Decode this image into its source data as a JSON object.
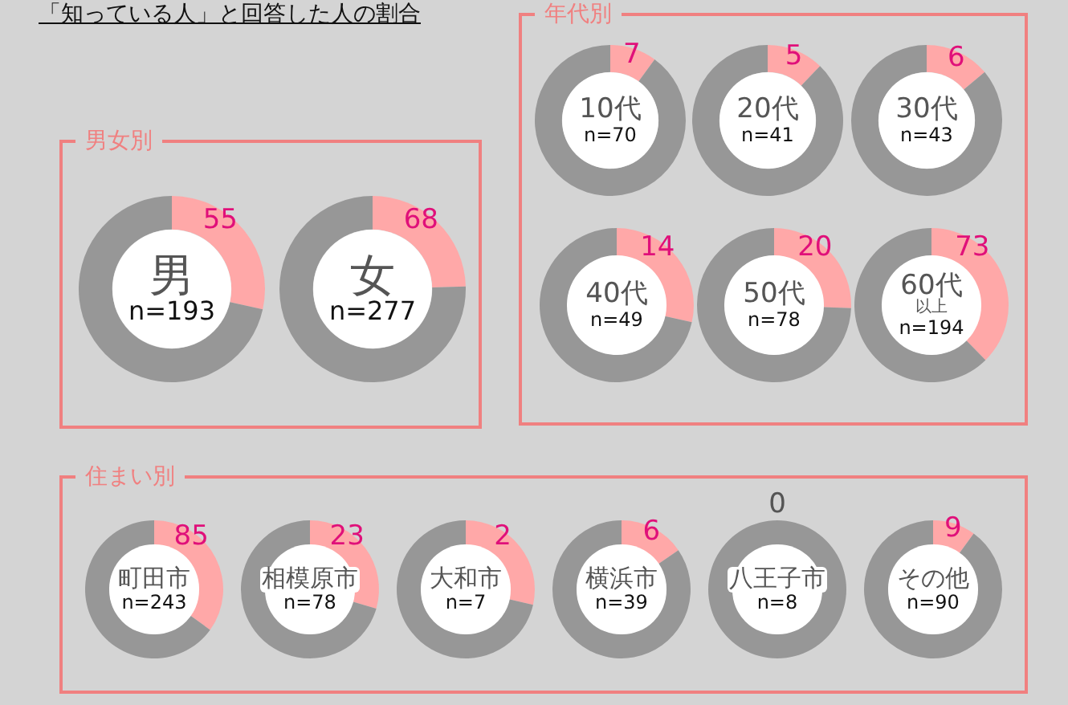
{
  "chart_data": [
    {
      "type": "other",
      "title": "「知っている人」と回答した人の割合"
    },
    {
      "type": "other",
      "title": "男女別"
    },
    {
      "type": "donut",
      "title": "男",
      "subtitle": "n=193",
      "categories": [
        null,
        null
      ],
      "values": [
        55,
        138
      ],
      "value_labels": [
        "55",
        null
      ],
      "colors": [
        "#ffa8a8",
        "#979797"
      ]
    },
    {
      "type": "donut",
      "title": "女",
      "subtitle": "n=277",
      "categories": [
        null,
        null
      ],
      "values": [
        68,
        209
      ],
      "value_labels": [
        "68",
        null
      ],
      "colors": [
        "#ffa8a8",
        "#979797"
      ]
    },
    {
      "type": "other",
      "title": "年代別"
    },
    {
      "type": "donut",
      "title": "10代",
      "subtitle": "n=70",
      "categories": [
        null,
        null
      ],
      "values": [
        7,
        63
      ],
      "value_labels": [
        "7",
        null
      ],
      "colors": [
        "#ffa8a8",
        "#979797"
      ]
    },
    {
      "type": "donut",
      "title": "20代",
      "subtitle": "n=41",
      "categories": [
        null,
        null
      ],
      "values": [
        5,
        36
      ],
      "value_labels": [
        "5",
        null
      ],
      "colors": [
        "#ffa8a8",
        "#979797"
      ]
    },
    {
      "type": "donut",
      "title": "30代",
      "subtitle": "n=43",
      "categories": [
        null,
        null
      ],
      "values": [
        6,
        37
      ],
      "value_labels": [
        "6",
        null
      ],
      "colors": [
        "#ffa8a8",
        "#979797"
      ]
    },
    {
      "type": "donut",
      "title": "40代",
      "subtitle": "n=49",
      "categories": [
        null,
        null
      ],
      "values": [
        14,
        35
      ],
      "value_labels": [
        "14",
        null
      ],
      "colors": [
        "#ffa8a8",
        "#979797"
      ]
    },
    {
      "type": "donut",
      "title": "50代",
      "subtitle": "n=78",
      "categories": [
        null,
        null
      ],
      "values": [
        20,
        58
      ],
      "value_labels": [
        "20",
        null
      ],
      "colors": [
        "#ffa8a8",
        "#979797"
      ]
    },
    {
      "type": "donut",
      "title": "60代",
      "subtitle": "n=194",
      "annotations": [
        "以上"
      ],
      "categories": [
        null,
        null
      ],
      "values": [
        73,
        121
      ],
      "value_labels": [
        "73",
        null
      ],
      "colors": [
        "#ffa8a8",
        "#979797"
      ]
    },
    {
      "type": "other",
      "title": "住まい別"
    },
    {
      "type": "donut",
      "title": "町田市",
      "subtitle": "n=243",
      "categories": [
        null,
        null
      ],
      "values": [
        85,
        158
      ],
      "value_labels": [
        "85",
        null
      ],
      "colors": [
        "#ffa8a8",
        "#979797"
      ]
    },
    {
      "type": "donut",
      "title": "相模原市",
      "subtitle": "n=78",
      "categories": [
        null,
        null
      ],
      "values": [
        23,
        55
      ],
      "value_labels": [
        "23",
        null
      ],
      "colors": [
        "#ffa8a8",
        "#979797"
      ]
    },
    {
      "type": "donut",
      "title": "大和市",
      "subtitle": "n=7",
      "categories": [
        null,
        null
      ],
      "values": [
        2,
        5
      ],
      "value_labels": [
        "2",
        null
      ],
      "colors": [
        "#ffa8a8",
        "#979797"
      ]
    },
    {
      "type": "donut",
      "title": "横浜市",
      "subtitle": "n=39",
      "categories": [
        null,
        null
      ],
      "values": [
        6,
        33
      ],
      "value_labels": [
        "6",
        null
      ],
      "colors": [
        "#ffa8a8",
        "#979797"
      ]
    },
    {
      "type": "donut",
      "title": "八王子市",
      "subtitle": "n=8",
      "categories": [
        null,
        null
      ],
      "values": [
        0,
        100
      ],
      "value_labels": [
        "0",
        null
      ],
      "colors": [
        "#ffa8a8",
        "#979797"
      ]
    },
    {
      "type": "donut",
      "title": "その他",
      "subtitle": "n=90",
      "categories": [
        null,
        null
      ],
      "values": [
        9,
        81
      ],
      "value_labels": [
        "9",
        null
      ],
      "colors": [
        "#ffa8a8",
        "#979797"
      ]
    }
  ]
}
